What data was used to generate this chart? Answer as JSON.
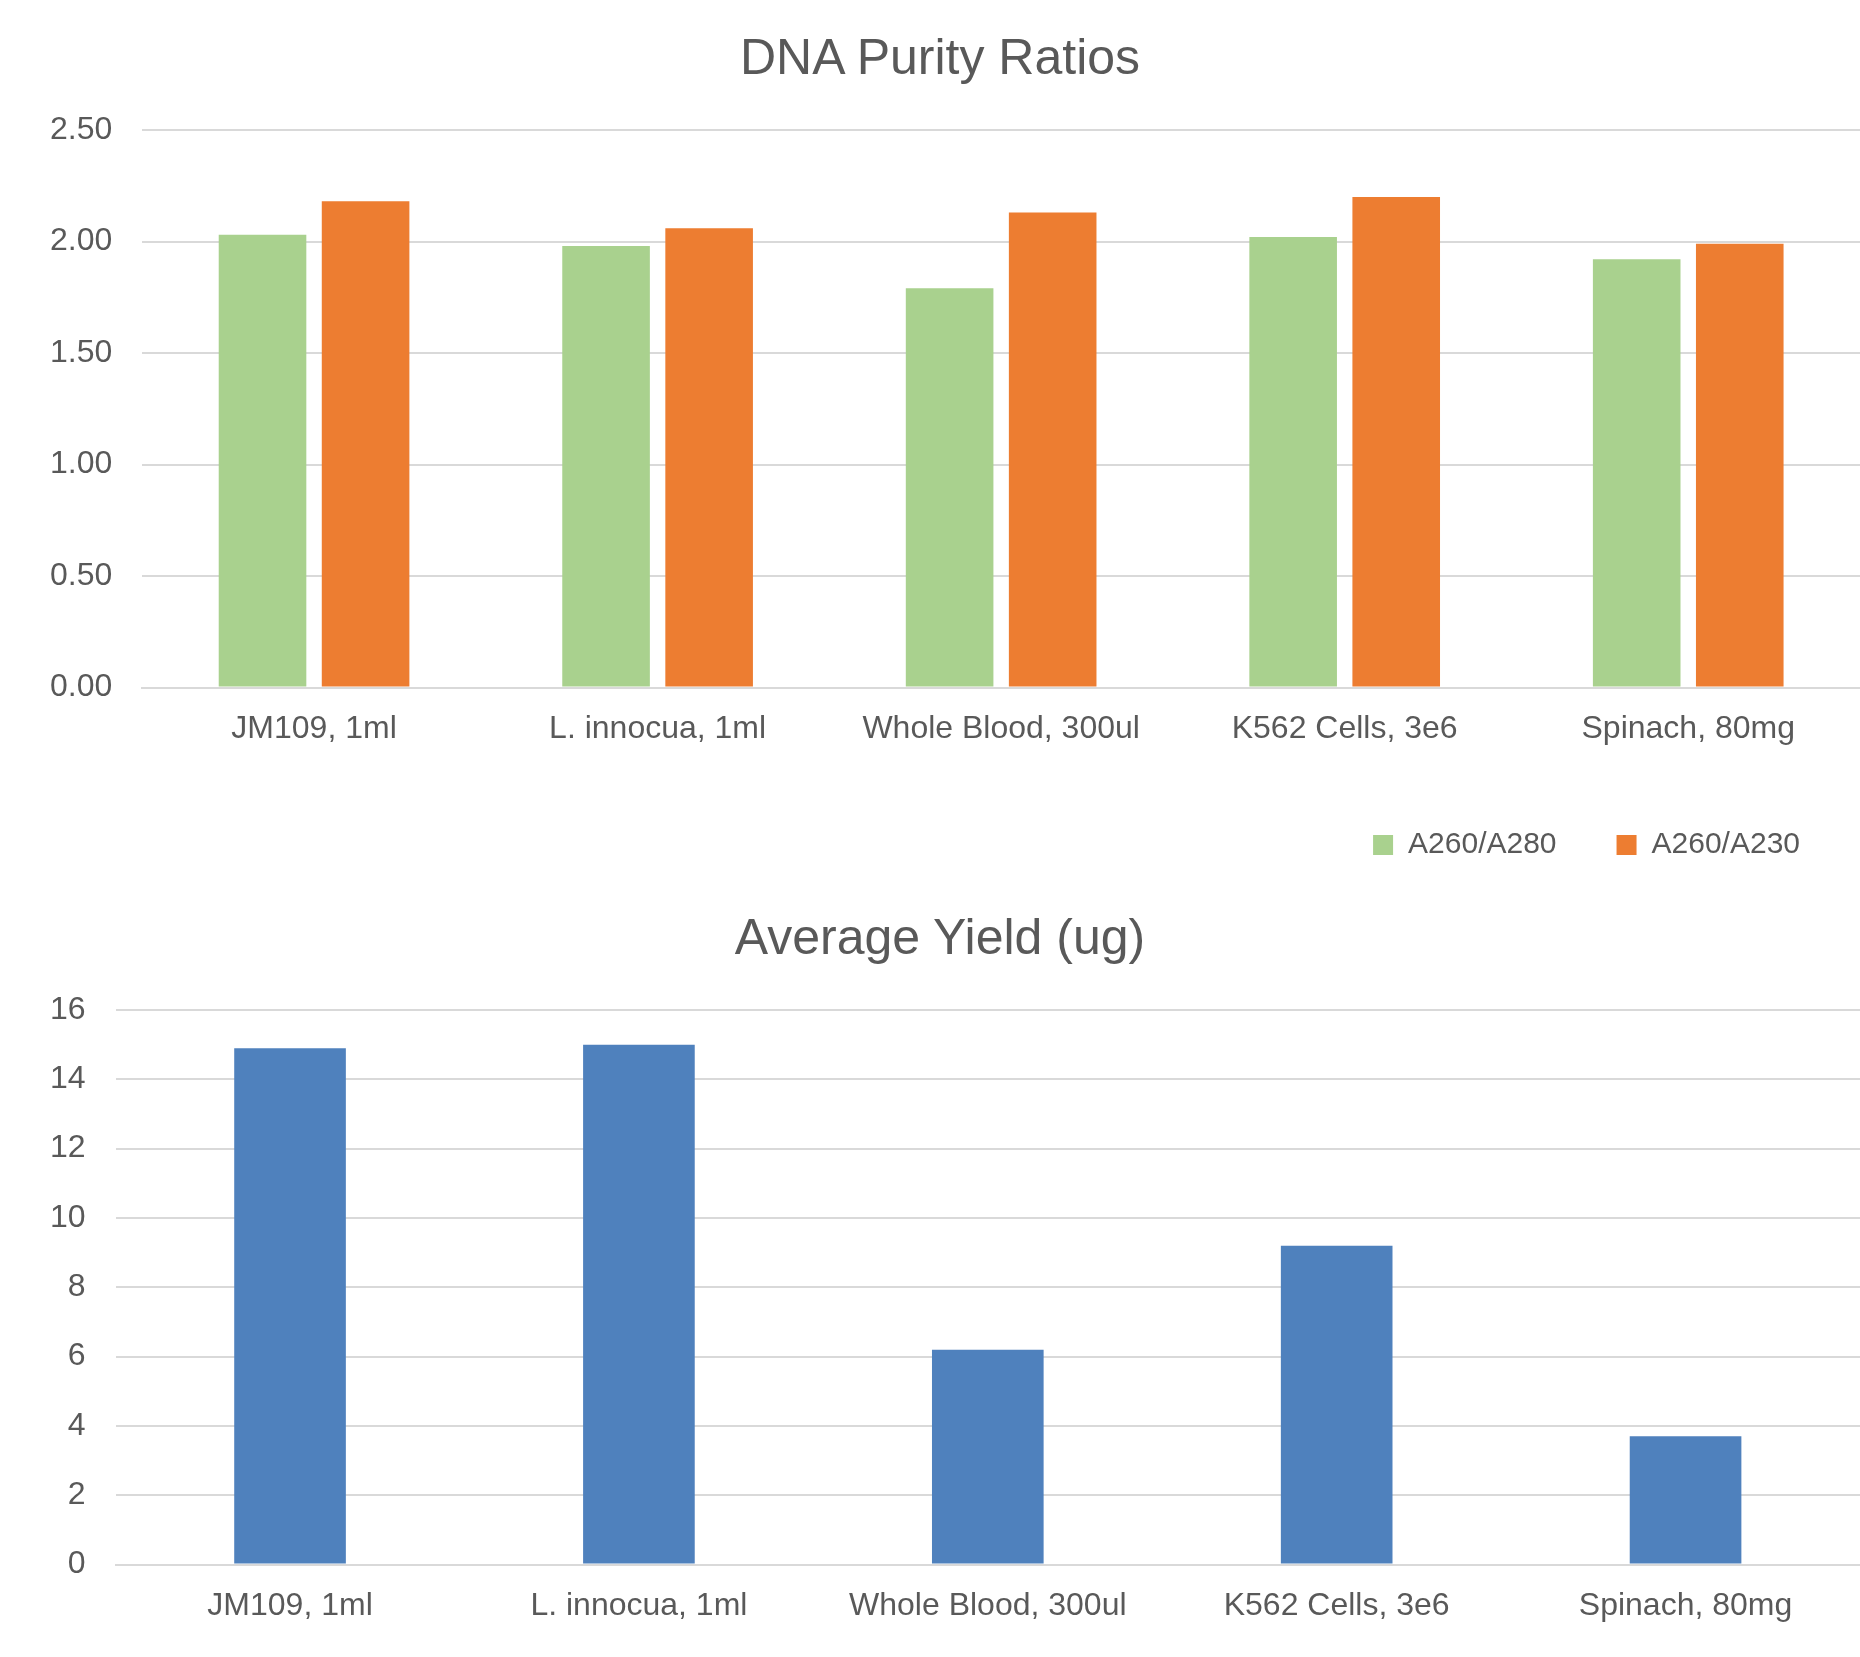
{
  "chart_data": [
    {
      "type": "bar",
      "title": "DNA Purity Ratios",
      "categories": [
        "JM109, 1ml",
        "L. innocua, 1ml",
        "Whole Blood, 300ul",
        "K562 Cells, 3e6",
        "Spinach, 80mg"
      ],
      "series": [
        {
          "name": "A260/A280",
          "color": "#a9d18e",
          "values": [
            2.03,
            1.98,
            1.79,
            2.02,
            1.92
          ]
        },
        {
          "name": "A260/A230",
          "color": "#ed7d31",
          "values": [
            2.18,
            2.06,
            2.13,
            2.2,
            1.99
          ]
        }
      ],
      "ylim": [
        0,
        2.5
      ],
      "yticks": [
        {
          "value": 0,
          "label": "0.00"
        },
        {
          "value": 0.5,
          "label": "0.50"
        },
        {
          "value": 1,
          "label": "1.00"
        },
        {
          "value": 1.5,
          "label": "1.50"
        },
        {
          "value": 2,
          "label": "2.00"
        },
        {
          "value": 2.5,
          "label": "2.50"
        }
      ],
      "grid": "y",
      "legend": "bottom right"
    },
    {
      "type": "bar",
      "title": "Average Yield (ug)",
      "categories": [
        "JM109, 1ml",
        "L. innocua, 1ml",
        "Whole Blood, 300ul",
        "K562 Cells, 3e6",
        "Spinach, 80mg"
      ],
      "series": [
        {
          "color": "#4f81bd",
          "values": [
            14.9,
            15.0,
            6.2,
            9.2,
            3.7
          ]
        }
      ],
      "ylim": [
        0,
        16
      ],
      "yticks": [
        0,
        2,
        4,
        6,
        8,
        10,
        12,
        14,
        16
      ],
      "grid": "y",
      "legend": false
    }
  ]
}
